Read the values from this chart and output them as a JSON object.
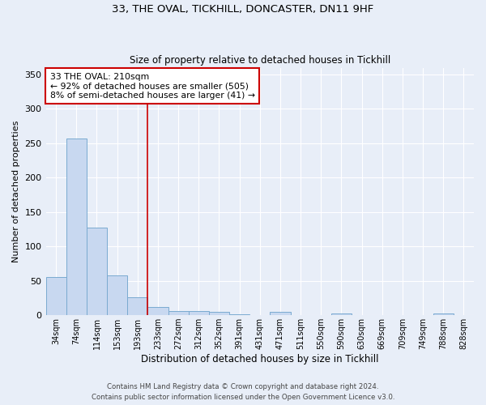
{
  "title_line1": "33, THE OVAL, TICKHILL, DONCASTER, DN11 9HF",
  "title_line2": "Size of property relative to detached houses in Tickhill",
  "xlabel": "Distribution of detached houses by size in Tickhill",
  "ylabel": "Number of detached properties",
  "bar_labels": [
    "34sqm",
    "74sqm",
    "114sqm",
    "153sqm",
    "193sqm",
    "233sqm",
    "272sqm",
    "312sqm",
    "352sqm",
    "391sqm",
    "431sqm",
    "471sqm",
    "511sqm",
    "550sqm",
    "590sqm",
    "630sqm",
    "669sqm",
    "709sqm",
    "749sqm",
    "788sqm",
    "828sqm"
  ],
  "bar_values": [
    55,
    257,
    127,
    58,
    26,
    12,
    6,
    6,
    5,
    1,
    0,
    5,
    0,
    0,
    3,
    0,
    0,
    0,
    0,
    3,
    0
  ],
  "bar_color": "#c8d8f0",
  "bar_edge_color": "#7aaad0",
  "ylim": [
    0,
    360
  ],
  "yticks": [
    0,
    50,
    100,
    150,
    200,
    250,
    300,
    350
  ],
  "annotation_title": "33 THE OVAL: 210sqm",
  "annotation_line2": "← 92% of detached houses are smaller (505)",
  "annotation_line3": "8% of semi-detached houses are larger (41) →",
  "footer_line1": "Contains HM Land Registry data © Crown copyright and database right 2024.",
  "footer_line2": "Contains public sector information licensed under the Open Government Licence v3.0.",
  "background_color": "#e8eef8",
  "grid_color": "#ffffff",
  "annotation_box_color": "#ffffff",
  "annotation_box_edge": "#cc0000",
  "vline_color": "#cc0000",
  "vline_x": 4.5
}
